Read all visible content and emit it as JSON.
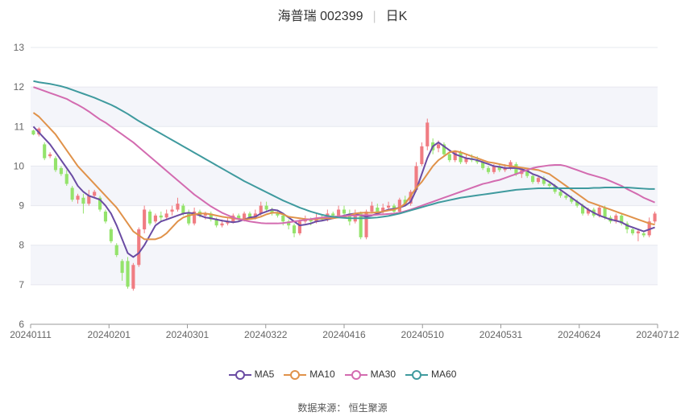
{
  "header": {
    "stock": "海普瑞 002399",
    "period": "日K"
  },
  "source": {
    "label": "数据来源：",
    "value": "恒生聚源"
  },
  "chart_data": {
    "type": "candlestick",
    "ylim": [
      6,
      13
    ],
    "yticks": [
      6,
      7,
      8,
      9,
      10,
      11,
      12,
      13
    ],
    "xticks": [
      "20240111",
      "20240201",
      "20240301",
      "20240322",
      "20240416",
      "20240510",
      "20240531",
      "20240624",
      "20240712"
    ],
    "colors": {
      "up": "#f07c82",
      "down": "#94e36b",
      "ma5": "#6a4ba3",
      "ma10": "#e0924a",
      "ma30": "#d36bb0",
      "ma60": "#3f9a9e"
    },
    "legend": [
      "MA5",
      "MA10",
      "MA30",
      "MA60"
    ],
    "candles": [
      [
        10.9,
        10.8,
        10.92,
        10.78
      ],
      [
        10.8,
        10.95,
        10.98,
        10.75
      ],
      [
        10.55,
        10.2,
        10.6,
        10.15
      ],
      [
        10.25,
        10.3,
        10.35,
        10.2
      ],
      [
        10.2,
        9.9,
        10.25,
        9.85
      ],
      [
        9.95,
        9.8,
        10.0,
        9.75
      ],
      [
        9.8,
        9.55,
        9.9,
        9.5
      ],
      [
        9.45,
        9.15,
        9.5,
        9.1
      ],
      [
        9.15,
        9.25,
        9.3,
        9.05
      ],
      [
        9.2,
        9.05,
        9.3,
        8.8
      ],
      [
        9.05,
        9.25,
        9.4,
        9.0
      ],
      [
        9.25,
        9.35,
        9.4,
        9.2
      ],
      [
        9.2,
        8.9,
        9.25,
        8.85
      ],
      [
        8.85,
        8.6,
        8.9,
        8.55
      ],
      [
        8.4,
        8.1,
        8.45,
        8.05
      ],
      [
        8.0,
        7.75,
        8.05,
        7.7
      ],
      [
        7.6,
        7.3,
        7.65,
        7.1
      ],
      [
        7.6,
        6.95,
        7.7,
        6.9
      ],
      [
        6.9,
        7.5,
        7.55,
        6.85
      ],
      [
        7.5,
        8.4,
        8.45,
        7.45
      ],
      [
        8.4,
        8.9,
        9.0,
        8.3
      ],
      [
        8.85,
        8.55,
        8.9,
        8.5
      ],
      [
        8.6,
        8.75,
        8.8,
        8.55
      ],
      [
        8.75,
        8.7,
        8.85,
        8.6
      ],
      [
        8.7,
        8.8,
        8.9,
        8.65
      ],
      [
        8.85,
        8.9,
        9.0,
        8.75
      ],
      [
        8.9,
        9.05,
        9.2,
        8.85
      ],
      [
        9.0,
        8.8,
        9.05,
        8.75
      ],
      [
        8.8,
        8.55,
        8.9,
        8.5
      ],
      [
        8.55,
        8.85,
        8.95,
        8.5
      ],
      [
        8.85,
        8.75,
        8.9,
        8.7
      ],
      [
        8.75,
        8.8,
        8.85,
        8.65
      ],
      [
        8.8,
        8.65,
        8.85,
        8.6
      ],
      [
        8.65,
        8.5,
        8.7,
        8.45
      ],
      [
        8.5,
        8.55,
        8.65,
        8.45
      ],
      [
        8.55,
        8.6,
        8.7,
        8.5
      ],
      [
        8.6,
        8.75,
        8.8,
        8.55
      ],
      [
        8.75,
        8.65,
        8.8,
        8.6
      ],
      [
        8.65,
        8.8,
        8.85,
        8.6
      ],
      [
        8.8,
        8.7,
        8.85,
        8.65
      ],
      [
        8.7,
        8.8,
        8.9,
        8.65
      ],
      [
        8.8,
        9.0,
        9.1,
        8.75
      ],
      [
        9.0,
        8.9,
        9.1,
        8.85
      ],
      [
        8.9,
        8.8,
        8.95,
        8.75
      ],
      [
        8.8,
        8.75,
        8.9,
        8.7
      ],
      [
        8.75,
        8.6,
        8.8,
        8.5
      ],
      [
        8.6,
        8.5,
        8.65,
        8.4
      ],
      [
        8.5,
        8.3,
        8.55,
        8.2
      ],
      [
        8.3,
        8.6,
        8.65,
        8.25
      ],
      [
        8.6,
        8.65,
        8.75,
        8.55
      ],
      [
        8.65,
        8.6,
        8.7,
        8.5
      ],
      [
        8.6,
        8.7,
        8.8,
        8.55
      ],
      [
        8.7,
        8.65,
        8.75,
        8.6
      ],
      [
        8.65,
        8.8,
        8.9,
        8.6
      ],
      [
        8.8,
        8.75,
        8.85,
        8.7
      ],
      [
        8.75,
        8.9,
        9.0,
        8.7
      ],
      [
        8.9,
        8.8,
        9.0,
        8.7
      ],
      [
        8.8,
        8.6,
        8.9,
        8.5
      ],
      [
        8.6,
        8.8,
        8.9,
        8.55
      ],
      [
        8.8,
        8.2,
        8.85,
        8.15
      ],
      [
        8.2,
        8.85,
        8.9,
        8.15
      ],
      [
        8.85,
        9.0,
        9.1,
        8.8
      ],
      [
        8.95,
        8.85,
        9.05,
        8.8
      ],
      [
        8.85,
        8.95,
        9.05,
        8.8
      ],
      [
        8.95,
        9.0,
        9.1,
        8.9
      ],
      [
        9.0,
        8.85,
        9.05,
        8.8
      ],
      [
        8.85,
        9.15,
        9.2,
        8.8
      ],
      [
        9.15,
        9.05,
        9.25,
        9.0
      ],
      [
        9.05,
        9.35,
        9.4,
        9.0
      ],
      [
        9.4,
        10.0,
        10.1,
        9.35
      ],
      [
        10.05,
        10.5,
        10.6,
        10.0
      ],
      [
        10.5,
        11.1,
        11.2,
        10.4
      ],
      [
        10.6,
        10.4,
        10.7,
        10.3
      ],
      [
        10.45,
        10.55,
        10.65,
        10.35
      ],
      [
        10.55,
        10.3,
        10.6,
        10.25
      ],
      [
        10.3,
        10.15,
        10.35,
        10.1
      ],
      [
        10.15,
        10.35,
        10.4,
        10.1
      ],
      [
        10.35,
        10.1,
        10.4,
        10.05
      ],
      [
        10.1,
        10.2,
        10.3,
        10.05
      ],
      [
        10.2,
        10.15,
        10.3,
        10.1
      ],
      [
        10.15,
        10.1,
        10.25,
        10.05
      ],
      [
        10.1,
        9.95,
        10.15,
        9.9
      ],
      [
        9.95,
        9.85,
        10.0,
        9.8
      ],
      [
        9.85,
        10.0,
        10.05,
        9.8
      ],
      [
        10.0,
        9.9,
        10.05,
        9.85
      ],
      [
        9.9,
        9.95,
        10.05,
        9.85
      ],
      [
        9.95,
        10.1,
        10.15,
        9.9
      ],
      [
        10.05,
        9.8,
        10.1,
        9.75
      ],
      [
        9.8,
        9.9,
        9.95,
        9.7
      ],
      [
        9.9,
        9.75,
        9.95,
        9.7
      ],
      [
        9.75,
        9.6,
        9.8,
        9.55
      ],
      [
        9.6,
        9.7,
        9.75,
        9.55
      ],
      [
        9.7,
        9.55,
        9.75,
        9.5
      ],
      [
        9.55,
        9.5,
        9.6,
        9.45
      ],
      [
        9.5,
        9.35,
        9.55,
        9.3
      ],
      [
        9.35,
        9.25,
        9.4,
        9.2
      ],
      [
        9.25,
        9.2,
        9.3,
        9.15
      ],
      [
        9.2,
        9.1,
        9.25,
        9.05
      ],
      [
        9.1,
        9.0,
        9.15,
        8.95
      ],
      [
        9.0,
        8.8,
        9.05,
        8.75
      ],
      [
        8.8,
        8.9,
        8.95,
        8.75
      ],
      [
        8.9,
        8.75,
        8.95,
        8.7
      ],
      [
        8.75,
        8.95,
        9.0,
        8.7
      ],
      [
        8.95,
        8.7,
        9.0,
        8.65
      ],
      [
        8.7,
        8.6,
        8.75,
        8.55
      ],
      [
        8.6,
        8.75,
        8.8,
        8.55
      ],
      [
        8.75,
        8.55,
        8.8,
        8.5
      ],
      [
        8.55,
        8.4,
        8.6,
        8.3
      ],
      [
        8.4,
        8.3,
        8.45,
        8.25
      ],
      [
        8.3,
        8.35,
        8.4,
        8.1
      ],
      [
        8.3,
        8.25,
        8.35,
        8.2
      ],
      [
        8.25,
        8.6,
        8.7,
        8.2
      ],
      [
        8.6,
        8.8,
        8.85,
        8.55
      ]
    ],
    "series": [
      {
        "name": "MA5",
        "values": [
          11.0,
          10.85,
          10.7,
          10.55,
          10.35,
          10.15,
          9.95,
          9.75,
          9.5,
          9.35,
          9.25,
          9.2,
          9.15,
          9.0,
          8.8,
          8.5,
          8.15,
          7.8,
          7.7,
          7.8,
          8.0,
          8.25,
          8.5,
          8.6,
          8.65,
          8.7,
          8.75,
          8.8,
          8.82,
          8.8,
          8.75,
          8.7,
          8.68,
          8.65,
          8.62,
          8.6,
          8.58,
          8.6,
          8.65,
          8.7,
          8.72,
          8.8,
          8.85,
          8.9,
          8.88,
          8.8,
          8.7,
          8.6,
          8.5,
          8.52,
          8.55,
          8.6,
          8.62,
          8.65,
          8.68,
          8.72,
          8.75,
          8.78,
          8.8,
          8.75,
          8.72,
          8.75,
          8.8,
          8.85,
          8.9,
          8.92,
          8.95,
          9.0,
          9.1,
          9.4,
          9.8,
          10.2,
          10.5,
          10.6,
          10.5,
          10.4,
          10.3,
          10.25,
          10.2,
          10.18,
          10.15,
          10.1,
          10.05,
          10.0,
          9.98,
          9.95,
          9.95,
          9.95,
          9.92,
          9.88,
          9.8,
          9.75,
          9.68,
          9.6,
          9.5,
          9.4,
          9.3,
          9.2,
          9.1,
          9.0,
          8.9,
          8.82,
          8.75,
          8.7,
          8.65,
          8.62,
          8.58,
          8.5,
          8.45,
          8.4,
          8.35,
          8.4,
          8.45
        ]
      },
      {
        "name": "MA10",
        "values": [
          11.35,
          11.25,
          11.1,
          10.95,
          10.8,
          10.6,
          10.4,
          10.2,
          10.0,
          9.85,
          9.7,
          9.55,
          9.4,
          9.25,
          9.1,
          8.95,
          8.75,
          8.55,
          8.35,
          8.25,
          8.15,
          8.15,
          8.15,
          8.2,
          8.3,
          8.45,
          8.6,
          8.7,
          8.75,
          8.78,
          8.8,
          8.8,
          8.78,
          8.75,
          8.72,
          8.7,
          8.68,
          8.66,
          8.65,
          8.66,
          8.68,
          8.72,
          8.78,
          8.82,
          8.82,
          8.78,
          8.72,
          8.7,
          8.68,
          8.66,
          8.65,
          8.66,
          8.68,
          8.68,
          8.68,
          8.7,
          8.72,
          8.75,
          8.8,
          8.82,
          8.82,
          8.82,
          8.83,
          8.85,
          8.88,
          8.9,
          8.95,
          9.05,
          9.25,
          9.45,
          9.6,
          9.8,
          10.0,
          10.15,
          10.25,
          10.35,
          10.38,
          10.35,
          10.3,
          10.25,
          10.2,
          10.15,
          10.1,
          10.08,
          10.05,
          10.02,
          10.0,
          9.98,
          9.96,
          9.94,
          9.92,
          9.9,
          9.85,
          9.8,
          9.7,
          9.6,
          9.5,
          9.4,
          9.3,
          9.2,
          9.1,
          9.05,
          9.0,
          8.95,
          8.9,
          8.85,
          8.8,
          8.75,
          8.7,
          8.65,
          8.6,
          8.55,
          8.52
        ]
      },
      {
        "name": "MA30",
        "values": [
          12.0,
          11.95,
          11.9,
          11.85,
          11.8,
          11.75,
          11.7,
          11.62,
          11.55,
          11.47,
          11.38,
          11.28,
          11.18,
          11.1,
          11.0,
          10.9,
          10.8,
          10.7,
          10.6,
          10.48,
          10.36,
          10.24,
          10.12,
          10.0,
          9.88,
          9.76,
          9.64,
          9.52,
          9.4,
          9.28,
          9.18,
          9.08,
          8.98,
          8.9,
          8.82,
          8.76,
          8.7,
          8.66,
          8.63,
          8.6,
          8.58,
          8.56,
          8.55,
          8.55,
          8.55,
          8.56,
          8.58,
          8.6,
          8.62,
          8.64,
          8.66,
          8.68,
          8.7,
          8.71,
          8.72,
          8.73,
          8.74,
          8.75,
          8.75,
          8.76,
          8.76,
          8.76,
          8.77,
          8.78,
          8.79,
          8.8,
          8.82,
          8.86,
          8.9,
          8.95,
          9.0,
          9.05,
          9.1,
          9.15,
          9.2,
          9.25,
          9.3,
          9.35,
          9.4,
          9.45,
          9.5,
          9.55,
          9.58,
          9.62,
          9.65,
          9.7,
          9.75,
          9.8,
          9.85,
          9.9,
          9.95,
          9.98,
          10.0,
          10.02,
          10.03,
          10.03,
          10.0,
          9.95,
          9.9,
          9.85,
          9.8,
          9.76,
          9.72,
          9.68,
          9.62,
          9.56,
          9.5,
          9.42,
          9.35,
          9.28,
          9.2,
          9.14,
          9.08
        ]
      },
      {
        "name": "MA60",
        "values": [
          12.15,
          12.12,
          12.1,
          12.08,
          12.05,
          12.02,
          11.98,
          11.93,
          11.88,
          11.83,
          11.78,
          11.73,
          11.67,
          11.61,
          11.55,
          11.48,
          11.4,
          11.32,
          11.23,
          11.14,
          11.06,
          10.98,
          10.9,
          10.82,
          10.74,
          10.66,
          10.58,
          10.5,
          10.42,
          10.34,
          10.26,
          10.18,
          10.1,
          10.02,
          9.94,
          9.86,
          9.78,
          9.7,
          9.62,
          9.55,
          9.48,
          9.41,
          9.34,
          9.27,
          9.2,
          9.13,
          9.07,
          9.01,
          8.95,
          8.9,
          8.85,
          8.81,
          8.77,
          8.74,
          8.72,
          8.7,
          8.69,
          8.68,
          8.68,
          8.68,
          8.68,
          8.69,
          8.7,
          8.72,
          8.74,
          8.77,
          8.8,
          8.84,
          8.88,
          8.92,
          8.96,
          9.0,
          9.04,
          9.08,
          9.11,
          9.14,
          9.17,
          9.2,
          9.22,
          9.24,
          9.26,
          9.28,
          9.3,
          9.32,
          9.34,
          9.36,
          9.38,
          9.4,
          9.41,
          9.42,
          9.43,
          9.44,
          9.44,
          9.44,
          9.44,
          9.44,
          9.44,
          9.44,
          9.44,
          9.44,
          9.44,
          9.45,
          9.45,
          9.46,
          9.46,
          9.46,
          9.46,
          9.46,
          9.45,
          9.44,
          9.43,
          9.42,
          9.42
        ]
      }
    ]
  }
}
